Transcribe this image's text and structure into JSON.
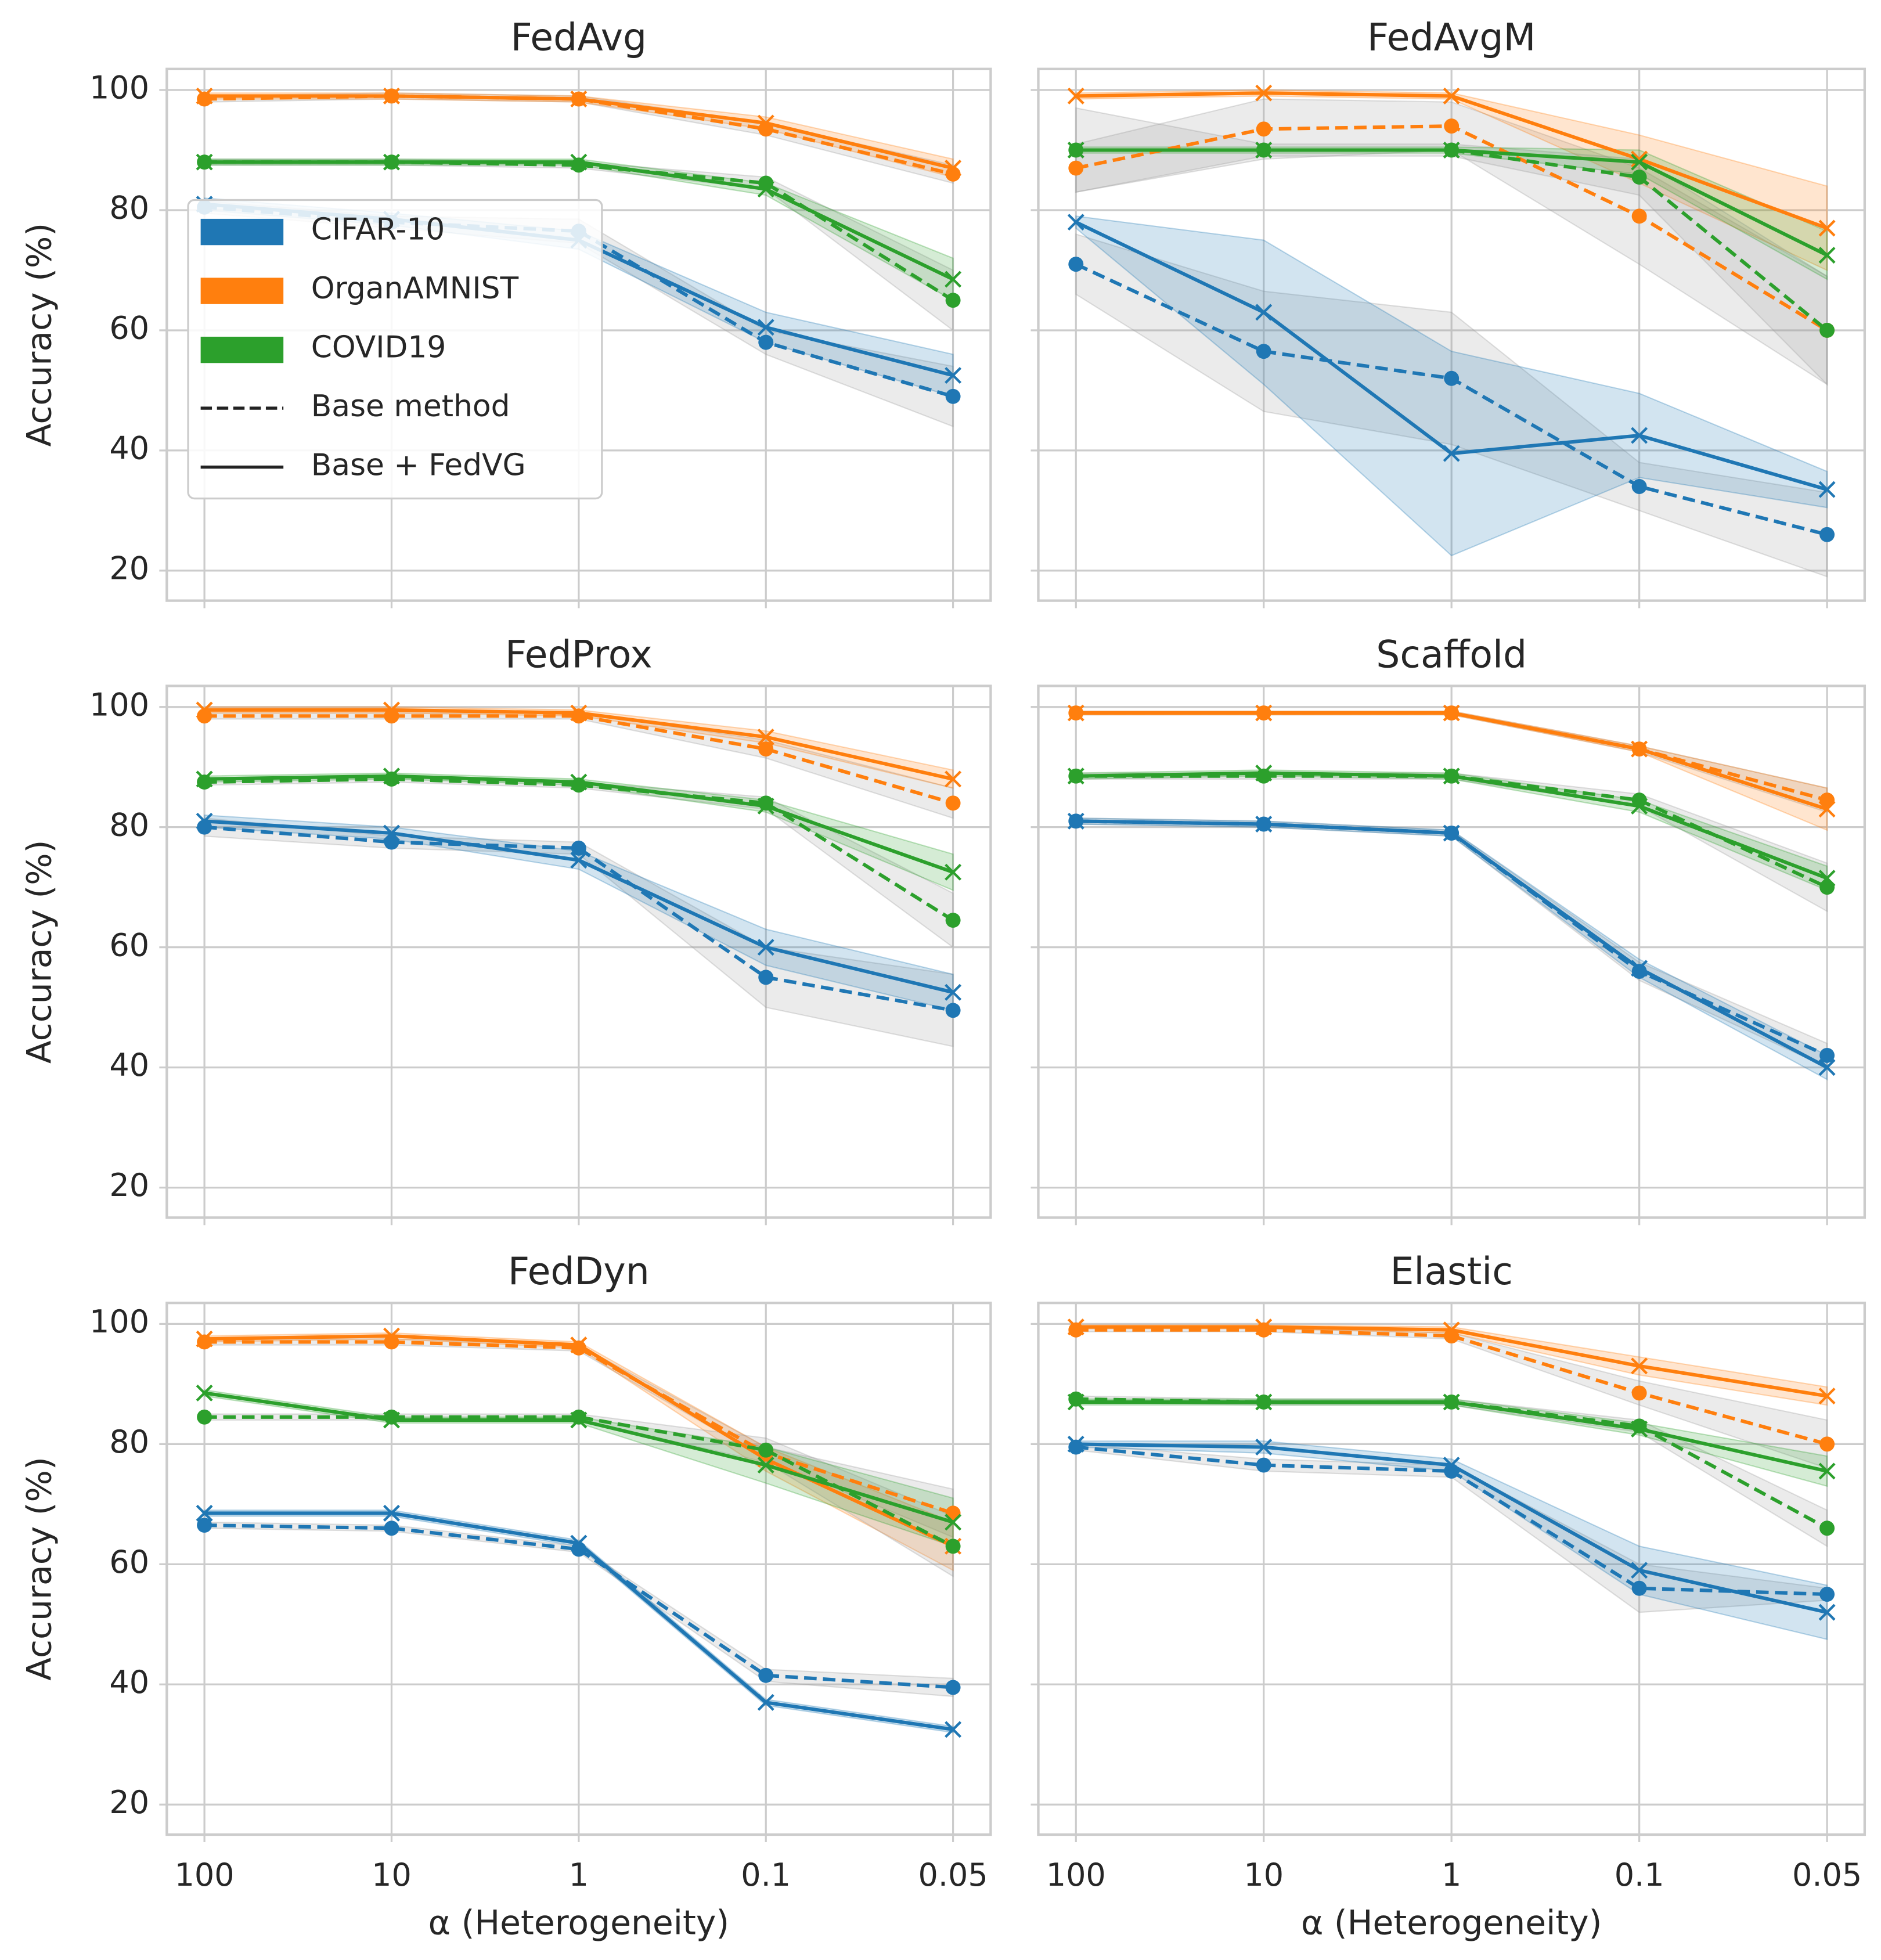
{
  "chart_data": [
    {
      "type": "line",
      "title": "FedAvg",
      "ylabel": "Accuracy (%)",
      "categories": [
        "100",
        "10",
        "1",
        "0.1",
        "0.05"
      ],
      "ylim": [
        15,
        103.5
      ],
      "yticks": [
        20,
        40,
        60,
        80,
        100
      ],
      "grid": true,
      "ytick_labels": true,
      "xtick_labels": false,
      "legend": {
        "position": "center left",
        "entries": [
          {
            "name": "CIFAR-10",
            "color": "#1f77b4",
            "kind": "patch"
          },
          {
            "name": "OrganAMNIST",
            "color": "#ff7f0e",
            "kind": "patch"
          },
          {
            "name": "COVID19",
            "color": "#2ca02c",
            "kind": "patch"
          },
          {
            "name": "Base method",
            "color": "#222222",
            "kind": "dashed"
          },
          {
            "name": "Base + FedVG",
            "color": "#222222",
            "kind": "solid"
          }
        ]
      },
      "series": [
        {
          "color": "#1f77b4",
          "dash": "dashed",
          "marker": "o",
          "band_color": "#999999",
          "values": [
            80.5,
            78,
            76.5,
            58,
            49
          ],
          "spread": [
            1,
            1,
            2,
            2,
            5
          ]
        },
        {
          "color": "#1f77b4",
          "dash": "solid",
          "marker": "x",
          "band_color": "#1f77b4",
          "values": [
            81,
            78.5,
            75,
            60.5,
            52.5
          ],
          "spread": [
            1,
            1,
            1.5,
            2.5,
            3.5
          ]
        },
        {
          "color": "#ff7f0e",
          "dash": "dashed",
          "marker": "o",
          "band_color": "#999999",
          "values": [
            98.5,
            99,
            98.5,
            93.5,
            86
          ],
          "spread": [
            0.5,
            0.5,
            0.5,
            1,
            1.5
          ]
        },
        {
          "color": "#ff7f0e",
          "dash": "solid",
          "marker": "x",
          "band_color": "#ff7f0e",
          "values": [
            99,
            99,
            98.5,
            94.5,
            87
          ],
          "spread": [
            0.5,
            0.5,
            0.5,
            1,
            1.5
          ]
        },
        {
          "color": "#2ca02c",
          "dash": "dashed",
          "marker": "o",
          "band_color": "#999999",
          "values": [
            88,
            88,
            87.5,
            84.5,
            65
          ],
          "spread": [
            0.5,
            0.5,
            0.5,
            1,
            5
          ]
        },
        {
          "color": "#2ca02c",
          "dash": "solid",
          "marker": "x",
          "band_color": "#2ca02c",
          "values": [
            88,
            88,
            88,
            83.5,
            68.5
          ],
          "spread": [
            0.5,
            0.5,
            0.5,
            1,
            3.5
          ]
        }
      ]
    },
    {
      "type": "line",
      "title": "FedAvgM",
      "categories": [
        "100",
        "10",
        "1",
        "0.1",
        "0.05"
      ],
      "ylim": [
        15,
        103.5
      ],
      "yticks": [
        20,
        40,
        60,
        80,
        100
      ],
      "grid": true,
      "ytick_labels": false,
      "xtick_labels": false,
      "series": [
        {
          "color": "#1f77b4",
          "dash": "dashed",
          "marker": "o",
          "band_color": "#999999",
          "values": [
            71,
            56.5,
            52,
            34,
            26
          ],
          "spread": [
            5,
            10,
            11,
            4,
            7
          ]
        },
        {
          "color": "#1f77b4",
          "dash": "solid",
          "marker": "x",
          "band_color": "#1f77b4",
          "values": [
            78,
            63,
            39.5,
            42.5,
            33.5
          ],
          "spread": [
            1,
            12,
            17,
            7,
            3
          ]
        },
        {
          "color": "#ff7f0e",
          "dash": "dashed",
          "marker": "o",
          "band_color": "#999999",
          "values": [
            87,
            93.5,
            94,
            79,
            60
          ],
          "spread": [
            4,
            5,
            4,
            8,
            9
          ]
        },
        {
          "color": "#ff7f0e",
          "dash": "solid",
          "marker": "x",
          "band_color": "#ff7f0e",
          "values": [
            99,
            99.5,
            99,
            88.5,
            77
          ],
          "spread": [
            0.5,
            0.5,
            0.5,
            4,
            7
          ]
        },
        {
          "color": "#2ca02c",
          "dash": "dashed",
          "marker": "o",
          "band_color": "#999999",
          "values": [
            90,
            90,
            90,
            85.5,
            60
          ],
          "spread": [
            7,
            1,
            1,
            3,
            9
          ]
        },
        {
          "color": "#2ca02c",
          "dash": "solid",
          "marker": "x",
          "band_color": "#2ca02c",
          "values": [
            90,
            90,
            90,
            88,
            72.5
          ],
          "spread": [
            0.5,
            0.5,
            0.5,
            2,
            4
          ]
        }
      ]
    },
    {
      "type": "line",
      "title": "FedProx",
      "ylabel": "Accuracy (%)",
      "categories": [
        "100",
        "10",
        "1",
        "0.1",
        "0.05"
      ],
      "ylim": [
        15,
        103.5
      ],
      "yticks": [
        20,
        40,
        60,
        80,
        100
      ],
      "grid": true,
      "ytick_labels": true,
      "xtick_labels": false,
      "series": [
        {
          "color": "#1f77b4",
          "dash": "dashed",
          "marker": "o",
          "band_color": "#999999",
          "values": [
            80,
            77.5,
            76.5,
            55,
            49.5
          ],
          "spread": [
            1.5,
            1,
            1,
            5,
            6
          ]
        },
        {
          "color": "#1f77b4",
          "dash": "solid",
          "marker": "x",
          "band_color": "#1f77b4",
          "values": [
            81,
            79,
            74.5,
            60,
            52.5
          ],
          "spread": [
            1,
            1,
            1.5,
            3,
            3
          ]
        },
        {
          "color": "#ff7f0e",
          "dash": "dashed",
          "marker": "o",
          "band_color": "#999999",
          "values": [
            98.5,
            98.5,
            98.5,
            93,
            84
          ],
          "spread": [
            0.5,
            0.5,
            0.5,
            1.5,
            2.5
          ]
        },
        {
          "color": "#ff7f0e",
          "dash": "solid",
          "marker": "x",
          "band_color": "#ff7f0e",
          "values": [
            99.5,
            99.5,
            99,
            95,
            88
          ],
          "spread": [
            0.5,
            0.5,
            0.5,
            1,
            1.5
          ]
        },
        {
          "color": "#2ca02c",
          "dash": "dashed",
          "marker": "o",
          "band_color": "#999999",
          "values": [
            87.5,
            88,
            87,
            84,
            64.5
          ],
          "spread": [
            0.5,
            0.5,
            0.5,
            1,
            4.5
          ]
        },
        {
          "color": "#2ca02c",
          "dash": "solid",
          "marker": "x",
          "band_color": "#2ca02c",
          "values": [
            88,
            88.5,
            87.5,
            83.5,
            72.5
          ],
          "spread": [
            0.5,
            0.5,
            0.5,
            1,
            3
          ]
        }
      ]
    },
    {
      "type": "line",
      "title": "Scaffold",
      "categories": [
        "100",
        "10",
        "1",
        "0.1",
        "0.05"
      ],
      "ylim": [
        15,
        103.5
      ],
      "yticks": [
        20,
        40,
        60,
        80,
        100
      ],
      "grid": true,
      "ytick_labels": false,
      "xtick_labels": false,
      "series": [
        {
          "color": "#1f77b4",
          "dash": "dashed",
          "marker": "o",
          "band_color": "#999999",
          "values": [
            81,
            80.5,
            79,
            56,
            42
          ],
          "spread": [
            0.5,
            0.5,
            0.5,
            1.5,
            2
          ]
        },
        {
          "color": "#1f77b4",
          "dash": "solid",
          "marker": "x",
          "band_color": "#1f77b4",
          "values": [
            81,
            80.5,
            79,
            56.5,
            40
          ],
          "spread": [
            0.5,
            0.5,
            0.5,
            1.5,
            2
          ]
        },
        {
          "color": "#ff7f0e",
          "dash": "dashed",
          "marker": "o",
          "band_color": "#999999",
          "values": [
            99,
            99,
            99,
            93,
            84.5
          ],
          "spread": [
            0.3,
            0.3,
            0.3,
            0.5,
            2
          ]
        },
        {
          "color": "#ff7f0e",
          "dash": "solid",
          "marker": "x",
          "band_color": "#ff7f0e",
          "values": [
            99,
            99,
            99,
            93,
            83
          ],
          "spread": [
            0.3,
            0.3,
            0.3,
            0.5,
            3.5
          ]
        },
        {
          "color": "#2ca02c",
          "dash": "dashed",
          "marker": "o",
          "band_color": "#999999",
          "values": [
            88.5,
            88.5,
            88.5,
            84.5,
            70
          ],
          "spread": [
            0.5,
            0.5,
            0.5,
            1,
            4
          ]
        },
        {
          "color": "#2ca02c",
          "dash": "solid",
          "marker": "x",
          "band_color": "#2ca02c",
          "values": [
            88.5,
            89,
            88.5,
            83.5,
            71.5
          ],
          "spread": [
            0.5,
            0.5,
            0.5,
            1,
            2
          ]
        }
      ]
    },
    {
      "type": "line",
      "title": "FedDyn",
      "ylabel": "Accuracy (%)",
      "xlabel": "α (Heterogeneity)",
      "categories": [
        "100",
        "10",
        "1",
        "0.1",
        "0.05"
      ],
      "ylim": [
        15,
        103.5
      ],
      "yticks": [
        20,
        40,
        60,
        80,
        100
      ],
      "grid": true,
      "ytick_labels": true,
      "xtick_labels": true,
      "series": [
        {
          "color": "#1f77b4",
          "dash": "dashed",
          "marker": "o",
          "band_color": "#999999",
          "values": [
            66.5,
            66,
            62.5,
            41.5,
            39.5
          ],
          "spread": [
            0.5,
            0.5,
            0.5,
            1,
            1.5
          ]
        },
        {
          "color": "#1f77b4",
          "dash": "solid",
          "marker": "x",
          "band_color": "#1f77b4",
          "values": [
            68.5,
            68.5,
            63.5,
            37,
            32.5
          ],
          "spread": [
            0.5,
            0.5,
            0.5,
            0.5,
            0.5
          ]
        },
        {
          "color": "#ff7f0e",
          "dash": "dashed",
          "marker": "o",
          "band_color": "#999999",
          "values": [
            97,
            97,
            96,
            78.5,
            68.5
          ],
          "spread": [
            0.5,
            0.5,
            0.5,
            1,
            4
          ]
        },
        {
          "color": "#ff7f0e",
          "dash": "solid",
          "marker": "x",
          "band_color": "#ff7f0e",
          "values": [
            97.5,
            98,
            96.5,
            77.5,
            63
          ],
          "spread": [
            0.5,
            0.5,
            0.5,
            2,
            4
          ]
        },
        {
          "color": "#2ca02c",
          "dash": "dashed",
          "marker": "o",
          "band_color": "#999999",
          "values": [
            84.5,
            84.5,
            84.5,
            79,
            63
          ],
          "spread": [
            0.5,
            0.5,
            0.5,
            2,
            5
          ]
        },
        {
          "color": "#2ca02c",
          "dash": "solid",
          "marker": "x",
          "band_color": "#2ca02c",
          "values": [
            88.5,
            84,
            84,
            76.5,
            67
          ],
          "spread": [
            0.5,
            0.5,
            0.5,
            3,
            4
          ]
        }
      ]
    },
    {
      "type": "line",
      "title": "Elastic",
      "xlabel": "α (Heterogeneity)",
      "categories": [
        "100",
        "10",
        "1",
        "0.1",
        "0.05"
      ],
      "ylim": [
        15,
        103.5
      ],
      "yticks": [
        20,
        40,
        60,
        80,
        100
      ],
      "grid": true,
      "ytick_labels": false,
      "xtick_labels": true,
      "series": [
        {
          "color": "#1f77b4",
          "dash": "dashed",
          "marker": "o",
          "band_color": "#999999",
          "values": [
            79.5,
            76.5,
            75.5,
            56,
            55
          ],
          "spread": [
            0.5,
            1,
            1,
            4,
            1
          ]
        },
        {
          "color": "#1f77b4",
          "dash": "solid",
          "marker": "x",
          "band_color": "#1f77b4",
          "values": [
            80,
            79.5,
            76.5,
            59,
            52
          ],
          "spread": [
            0.5,
            1,
            1,
            4,
            4.5
          ]
        },
        {
          "color": "#ff7f0e",
          "dash": "dashed",
          "marker": "o",
          "band_color": "#999999",
          "values": [
            99,
            99,
            98,
            88.5,
            80
          ],
          "spread": [
            0.3,
            0.3,
            0.5,
            2,
            4
          ]
        },
        {
          "color": "#ff7f0e",
          "dash": "solid",
          "marker": "x",
          "band_color": "#ff7f0e",
          "values": [
            99.5,
            99.5,
            99,
            93,
            88
          ],
          "spread": [
            0.3,
            0.3,
            0.5,
            1.5,
            1.5
          ]
        },
        {
          "color": "#2ca02c",
          "dash": "dashed",
          "marker": "o",
          "band_color": "#999999",
          "values": [
            87.5,
            87,
            87,
            83,
            66
          ],
          "spread": [
            0.5,
            0.5,
            0.5,
            1,
            3
          ]
        },
        {
          "color": "#2ca02c",
          "dash": "solid",
          "marker": "x",
          "band_color": "#2ca02c",
          "values": [
            87,
            87,
            87,
            82.5,
            75.5
          ],
          "spread": [
            0.5,
            0.5,
            0.5,
            1,
            2.5
          ]
        }
      ]
    }
  ]
}
